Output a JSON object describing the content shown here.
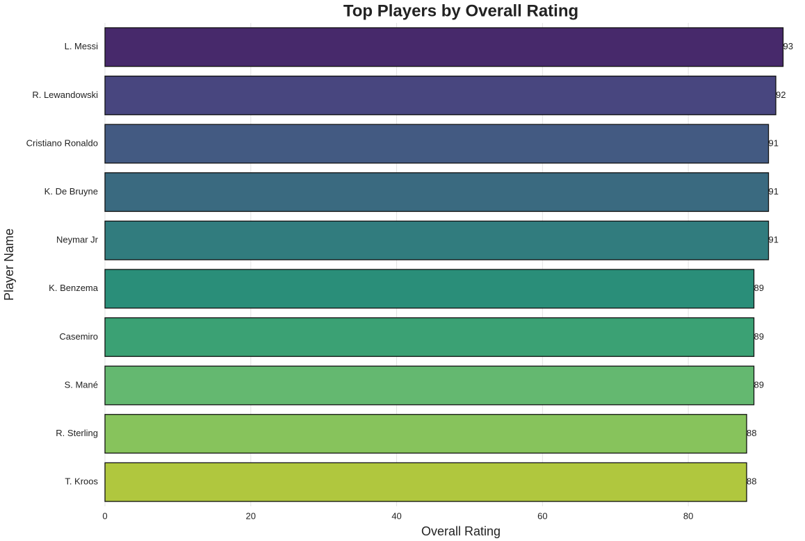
{
  "chart_data": {
    "type": "barh",
    "title": "Top Players by Overall Rating",
    "xlabel": "Overall Rating",
    "ylabel": "Player Name",
    "categories": [
      "L. Messi",
      "R. Lewandowski",
      "Cristiano Ronaldo",
      "K. De Bruyne",
      "Neymar Jr",
      "K. Benzema",
      "Casemiro",
      "S. Mané",
      "R. Sterling",
      "T. Kroos"
    ],
    "values": [
      93,
      92,
      91,
      91,
      91,
      89,
      89,
      89,
      88,
      88
    ],
    "colors": [
      "#47296b",
      "#48467f",
      "#435a82",
      "#3a6a80",
      "#317c7e",
      "#2a8e79",
      "#3ba174",
      "#64b870",
      "#87c35c",
      "#b0c73e"
    ],
    "xlim": [
      0,
      93
    ],
    "xticks": [
      0,
      20,
      40,
      60,
      80
    ],
    "grid": true
  }
}
